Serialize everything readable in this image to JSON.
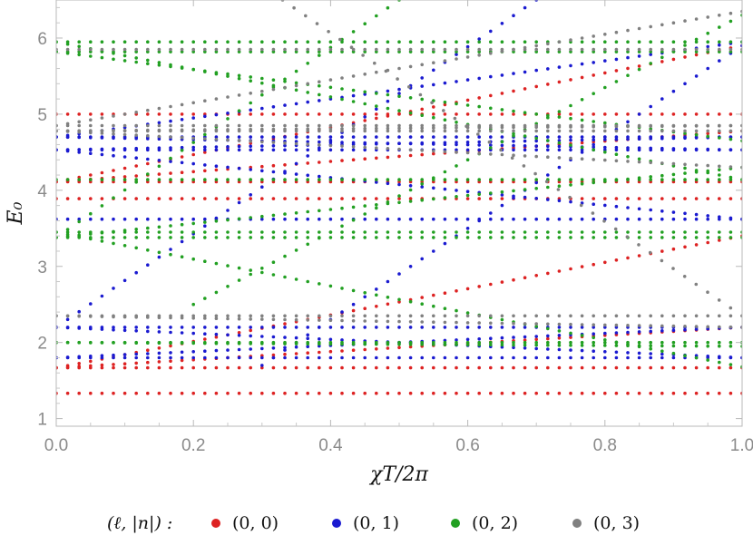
{
  "chart_data": {
    "type": "scatter",
    "xlabel": "χT/2π",
    "ylabel": "E₀",
    "xlim": [
      0,
      1
    ],
    "ylim": [
      0.9,
      6.5
    ],
    "xticks": [
      "0.0",
      "0.2",
      "0.4",
      "0.6",
      "0.8",
      "1.0"
    ],
    "xtick_values": [
      0,
      0.2,
      0.4,
      0.6,
      0.8,
      1.0
    ],
    "yticks": [
      "1",
      "2",
      "3",
      "4",
      "5",
      "6"
    ],
    "ytick_values": [
      1,
      2,
      3,
      4,
      5,
      6
    ],
    "grid": false,
    "legend_title": "(ℓ, |n|) :",
    "legend_placement": "bottom",
    "series": [
      {
        "name": "(0, 0)",
        "color": "#dd2222",
        "flat_levels": [
          1.333,
          1.667,
          3.889,
          4.111,
          5.0
        ],
        "lines": [
          {
            "x": [
              0,
              1
            ],
            "y": [
              1.667,
              3.4
            ]
          },
          {
            "x": [
              0,
              1
            ],
            "y": [
              1.667,
              2.2
            ]
          },
          {
            "x": [
              0,
              1
            ],
            "y": [
              4.111,
              5.9
            ]
          },
          {
            "x": [
              0,
              1
            ],
            "y": [
              4.111,
              4.78
            ]
          }
        ]
      },
      {
        "name": "(0, 1)",
        "color": "#1a1ad0",
        "flat_levels": [
          1.8,
          2.2,
          3.62,
          4.53,
          4.7
        ],
        "lines": [
          {
            "x": [
              0,
              0.7
            ],
            "y": [
              2.2,
              6.5
            ]
          },
          {
            "x": [
              0.3,
              1
            ],
            "y": [
              1.7,
              5.9
            ]
          },
          {
            "x": [
              0,
              1
            ],
            "y": [
              2.2,
              1.8
            ]
          },
          {
            "x": [
              0,
              1
            ],
            "y": [
              1.8,
              2.2
            ]
          },
          {
            "x": [
              0,
              1
            ],
            "y": [
              4.7,
              4.53
            ]
          },
          {
            "x": [
              0,
              1
            ],
            "y": [
              4.53,
              4.7
            ]
          },
          {
            "x": [
              0,
              1
            ],
            "y": [
              4.7,
              5.95
            ]
          },
          {
            "x": [
              0,
              1
            ],
            "y": [
              4.53,
              3.62
            ]
          }
        ]
      },
      {
        "name": "(0, 2)",
        "color": "#22a022",
        "flat_levels": [
          2.0,
          3.38,
          3.45,
          4.14,
          5.82,
          5.95
        ],
        "lines": [
          {
            "x": [
              0,
              0.5
            ],
            "y": [
              3.38,
              6.5
            ]
          },
          {
            "x": [
              0,
              1
            ],
            "y": [
              3.45,
              1.68
            ]
          },
          {
            "x": [
              0,
              1
            ],
            "y": [
              2.0,
              1.95
            ]
          },
          {
            "x": [
              0,
              1
            ],
            "y": [
              3.38,
              4.3
            ]
          },
          {
            "x": [
              0,
              1
            ],
            "y": [
              5.95,
              4.14
            ]
          },
          {
            "x": [
              0.2,
              1
            ],
            "y": [
              2.5,
              6.3
            ]
          },
          {
            "x": [
              0,
              1
            ],
            "y": [
              5.82,
              4.65
            ]
          }
        ]
      },
      {
        "name": "(0, 3)",
        "color": "#808080",
        "flat_levels": [
          2.35,
          4.78,
          4.85,
          5.85
        ],
        "lines": [
          {
            "x": [
              0,
              1
            ],
            "y": [
              4.85,
              6.35
            ]
          },
          {
            "x": [
              0.33,
              1
            ],
            "y": [
              6.5,
              2.35
            ]
          },
          {
            "x": [
              0,
              1
            ],
            "y": [
              4.78,
              4.3
            ]
          },
          {
            "x": [
              0,
              1
            ],
            "y": [
              4.78,
              4.85
            ]
          },
          {
            "x": [
              0,
              1
            ],
            "y": [
              2.35,
              2.2
            ]
          }
        ]
      }
    ]
  }
}
